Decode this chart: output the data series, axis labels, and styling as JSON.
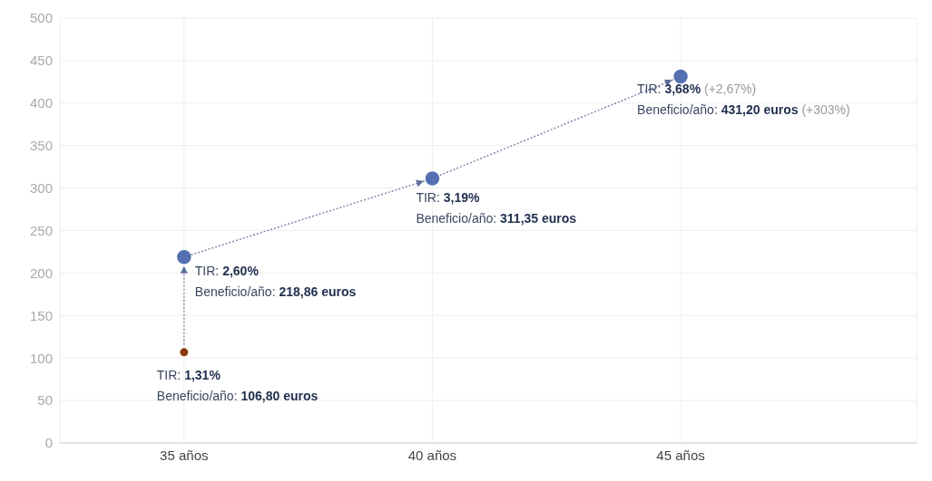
{
  "chart_data": {
    "type": "line",
    "categories": [
      "35 años",
      "40 años",
      "45 años"
    ],
    "series": [
      {
        "type": "scatter",
        "x": [
          "35 años"
        ],
        "values": [
          106.8
        ],
        "color": "#8b3a10"
      },
      {
        "values": [
          218.86,
          311.35,
          431.2
        ],
        "color": "#5470b0"
      }
    ],
    "ylim": [
      0,
      500
    ],
    "yticks": [
      0,
      50,
      100,
      150,
      200,
      250,
      300,
      350,
      400,
      450,
      500
    ],
    "grid": true,
    "marker": "circle",
    "line_style": "dotted",
    "annotations": [
      {
        "text": "TIR: 1,31%",
        "x": "35 años",
        "y": 106.8
      },
      {
        "text": "Beneficio/año: 106,80 euros",
        "x": "35 años",
        "y": 106.8
      },
      {
        "text": "TIR: 2,60%",
        "x": "35 años",
        "y": 218.86
      },
      {
        "text": "Beneficio/año: 218,86 euros",
        "x": "35 años",
        "y": 218.86
      },
      {
        "text": "TIR: 3,19%",
        "x": "40 años",
        "y": 311.35
      },
      {
        "text": "Beneficio/año: 311,35 euros",
        "x": "40 años",
        "y": 311.35
      },
      {
        "text": "TIR: 3,68% (+2,67%)",
        "x": "45 años",
        "y": 431.2
      },
      {
        "text": "Beneficio/año: 431,20 euros (+303%)",
        "x": "45 años",
        "y": 431.2
      }
    ]
  }
}
